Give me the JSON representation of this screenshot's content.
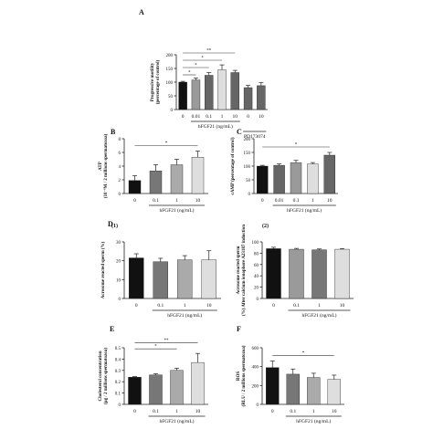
{
  "chart_data": [
    {
      "panel": "A",
      "type": "bar",
      "ylabel": "Progressive motility (percentage of control)",
      "ylim": [
        0,
        200
      ],
      "yticks": [
        0,
        50,
        100,
        150,
        200
      ],
      "categories": [
        "0",
        "0.01",
        "0.1",
        "1",
        "10",
        "0",
        "10"
      ],
      "xlabel": "hFGF21 (ng/mL)",
      "xlabel2": "PD173074",
      "values": [
        100,
        108,
        125,
        145,
        135,
        80,
        87
      ],
      "errors": [
        3,
        7,
        10,
        18,
        8,
        8,
        12
      ],
      "colors": [
        "#111111",
        "#9a9a9a",
        "#666666",
        "#dedede",
        "#666666",
        "#666666",
        "#666666"
      ],
      "significance": [
        {
          "from": 0,
          "to": 1,
          "label": "*"
        },
        {
          "from": 0,
          "to": 2,
          "label": "*"
        },
        {
          "from": 0,
          "to": 3,
          "label": "*"
        },
        {
          "from": 0,
          "to": 4,
          "label": "**"
        }
      ]
    },
    {
      "panel": "B",
      "type": "bar",
      "ylabel": "ATP (10⁻⁶M / 2 millions spermatozoa)",
      "ylim": [
        0,
        8
      ],
      "yticks": [
        0,
        2,
        4,
        6,
        8
      ],
      "categories": [
        "0",
        "0.1",
        "1",
        "10"
      ],
      "xlabel": "hFGF21 (ng/mL)",
      "values": [
        1.9,
        3.3,
        4.2,
        5.3
      ],
      "errors": [
        0.7,
        0.9,
        0.8,
        0.9
      ],
      "colors": [
        "#111111",
        "#777777",
        "#aaaaaa",
        "#dedede"
      ],
      "significance": [
        {
          "from": 0,
          "to": 3,
          "label": "*"
        }
      ]
    },
    {
      "panel": "C",
      "type": "bar",
      "ylabel": "cAMP (percentage of control)",
      "ylim": [
        0,
        200
      ],
      "yticks": [
        0,
        50,
        100,
        150,
        200
      ],
      "categories": [
        "0",
        "0.01",
        "0.1",
        "1",
        "10"
      ],
      "xlabel": "hFGF21 (ng/mL)",
      "values": [
        100,
        103,
        113,
        108,
        140
      ],
      "errors": [
        3,
        5,
        8,
        5,
        10
      ],
      "colors": [
        "#111111",
        "#666666",
        "#9a9a9a",
        "#dedede",
        "#666666"
      ],
      "significance": [
        {
          "from": 0,
          "to": 4,
          "label": "*"
        }
      ]
    },
    {
      "panel": "D",
      "sub": "(1)",
      "type": "bar",
      "ylabel": "Acrosome reacted sperm (%)",
      "ylim": [
        0,
        30
      ],
      "yticks": [
        0,
        10,
        20,
        30
      ],
      "categories": [
        "0",
        "0.1",
        "1",
        "10"
      ],
      "xlabel": "hFGF21 (ng/mL)",
      "values": [
        21.5,
        19.5,
        20.5,
        20.5
      ],
      "errors": [
        2.2,
        1.8,
        2.2,
        4.8
      ],
      "colors": [
        "#111111",
        "#777777",
        "#aaaaaa",
        "#dedede"
      ],
      "significance": []
    },
    {
      "panel": "",
      "sub": "(2)",
      "type": "bar",
      "ylabel": "Acrosome reacted sperm (%) After calcium ionophore A23187 induction",
      "ylim": [
        0,
        100
      ],
      "yticks": [
        0,
        20,
        40,
        60,
        80,
        100
      ],
      "categories": [
        "0",
        "0.1",
        "1",
        "10"
      ],
      "xlabel": "hFGF21 (ng/mL)",
      "values": [
        88,
        87,
        86,
        87
      ],
      "errors": [
        2.5,
        1.5,
        1.5,
        1.2
      ],
      "colors": [
        "#111111",
        "#9a9a9a",
        "#777777",
        "#dedede"
      ],
      "significance": []
    },
    {
      "panel": "E",
      "type": "bar",
      "ylabel": "Cholesterol concentration (μg / 2 millions spermatozoa)",
      "ylim": [
        0,
        0.5
      ],
      "yticks": [
        0,
        0.1,
        0.2,
        0.3,
        0.4,
        0.5
      ],
      "categories": [
        "0",
        "0.1",
        "1",
        "10"
      ],
      "xlabel": "hFGF21 (ng/mL)",
      "values": [
        0.24,
        0.26,
        0.3,
        0.37
      ],
      "errors": [
        0.005,
        0.01,
        0.02,
        0.08
      ],
      "colors": [
        "#111111",
        "#777777",
        "#aaaaaa",
        "#dedede"
      ],
      "significance": [
        {
          "from": 0,
          "to": 2,
          "label": "*"
        },
        {
          "from": 0,
          "to": 3,
          "label": "**"
        }
      ]
    },
    {
      "panel": "F",
      "type": "bar",
      "ylabel": "ROS (RLU / 2 millions spermatozoa)",
      "ylim": [
        0,
        600
      ],
      "yticks": [
        0,
        200,
        400,
        600
      ],
      "categories": [
        "0",
        "0.1",
        "1",
        "10"
      ],
      "xlabel": "hFGF21 (ng/mL)",
      "values": [
        390,
        320,
        285,
        265
      ],
      "errors": [
        70,
        55,
        45,
        45
      ],
      "colors": [
        "#111111",
        "#777777",
        "#aaaaaa",
        "#dedede"
      ],
      "significance": [
        {
          "from": 0,
          "to": 3,
          "label": "*"
        }
      ]
    }
  ]
}
